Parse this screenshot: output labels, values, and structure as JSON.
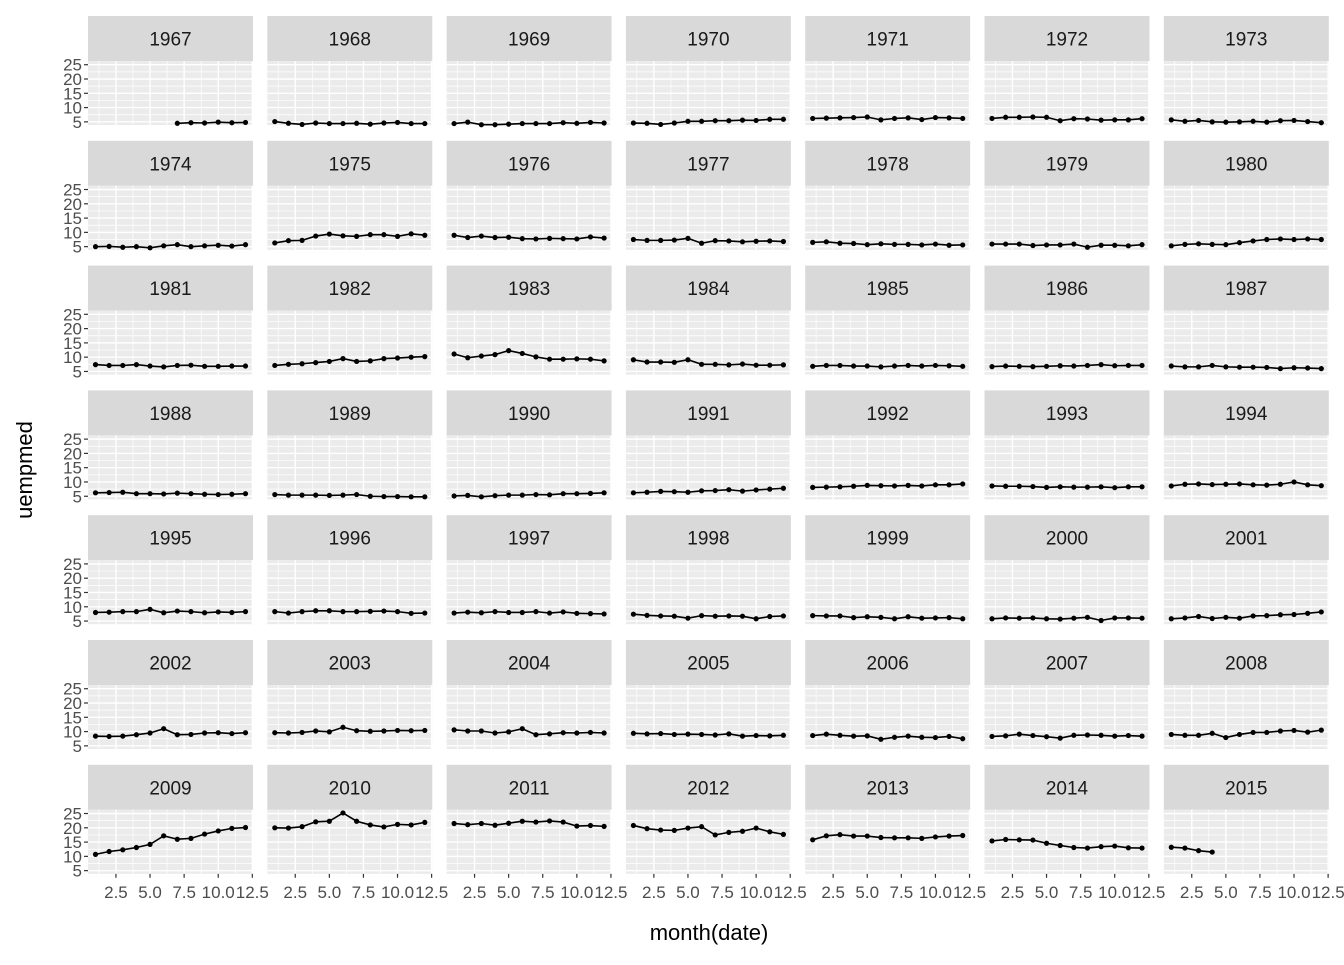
{
  "chart_data": {
    "type": "line",
    "facet_by": "year",
    "xlabel": "month(date)",
    "ylabel": "uempmed",
    "xlim": [
      0.45,
      12.55
    ],
    "ylim": [
      3.9,
      26.3
    ],
    "x_ticks": [
      "2.5",
      "5.0",
      "7.5",
      "10.0",
      "12.5"
    ],
    "y_ticks": [
      "5",
      "10",
      "15",
      "20",
      "25"
    ],
    "grid": true,
    "points": true,
    "colors": {
      "line": "#000000",
      "panel": "#EBEBEB",
      "strip": "#D9D9D9",
      "grid": "#FFFFFF",
      "text": "#4D4D4D"
    },
    "facets": [
      {
        "label": "1967",
        "start_month": 7,
        "values": [
          4.5,
          4.7,
          4.6,
          4.9,
          4.7,
          4.8
        ]
      },
      {
        "label": "1968",
        "start_month": 1,
        "values": [
          5.1,
          4.5,
          4.1,
          4.6,
          4.4,
          4.4,
          4.5,
          4.2,
          4.6,
          4.8,
          4.4,
          4.4
        ]
      },
      {
        "label": "1969",
        "start_month": 1,
        "values": [
          4.4,
          4.9,
          4.0,
          4.0,
          4.2,
          4.4,
          4.4,
          4.4,
          4.7,
          4.5,
          4.8,
          4.6
        ]
      },
      {
        "label": "1970",
        "start_month": 1,
        "values": [
          4.6,
          4.5,
          4.1,
          4.6,
          5.2,
          5.2,
          5.4,
          5.4,
          5.6,
          5.5,
          5.9,
          5.9
        ]
      },
      {
        "label": "1971",
        "start_month": 1,
        "values": [
          6.2,
          6.3,
          6.4,
          6.5,
          6.7,
          5.7,
          6.2,
          6.4,
          5.8,
          6.5,
          6.4,
          6.2
        ]
      },
      {
        "label": "1972",
        "start_month": 1,
        "values": [
          6.2,
          6.6,
          6.6,
          6.7,
          6.6,
          5.4,
          6.1,
          6.0,
          5.6,
          5.7,
          5.7,
          6.1
        ]
      },
      {
        "label": "1973",
        "start_month": 1,
        "values": [
          5.7,
          5.2,
          5.5,
          5.0,
          4.9,
          5.0,
          5.2,
          4.9,
          5.4,
          5.5,
          5.1,
          4.7
        ]
      },
      {
        "label": "1974",
        "start_month": 1,
        "values": [
          5.0,
          5.1,
          4.8,
          5.0,
          4.6,
          5.3,
          5.7,
          5.0,
          5.3,
          5.5,
          5.2,
          5.7
        ]
      },
      {
        "label": "1975",
        "start_month": 1,
        "values": [
          6.3,
          7.1,
          7.2,
          8.7,
          9.4,
          8.8,
          8.6,
          9.2,
          9.2,
          8.6,
          9.5,
          9.0
        ]
      },
      {
        "label": "1976",
        "start_month": 1,
        "values": [
          9.0,
          8.2,
          8.7,
          8.2,
          8.3,
          7.8,
          7.7,
          7.9,
          7.8,
          7.7,
          8.4,
          8.0
        ]
      },
      {
        "label": "1977",
        "start_month": 1,
        "values": [
          7.5,
          7.2,
          7.2,
          7.3,
          7.9,
          6.2,
          7.1,
          7.0,
          6.7,
          6.9,
          7.0,
          6.8
        ]
      },
      {
        "label": "1978",
        "start_month": 1,
        "values": [
          6.5,
          6.7,
          6.2,
          6.1,
          5.7,
          6.0,
          5.8,
          5.8,
          5.6,
          5.9,
          5.5,
          5.6
        ]
      },
      {
        "label": "1979",
        "start_month": 1,
        "values": [
          5.9,
          5.9,
          5.9,
          5.4,
          5.6,
          5.6,
          5.9,
          4.8,
          5.5,
          5.5,
          5.3,
          5.7
        ]
      },
      {
        "label": "1980",
        "start_month": 1,
        "values": [
          5.3,
          5.8,
          6.0,
          5.8,
          5.7,
          6.4,
          7.0,
          7.5,
          7.7,
          7.5,
          7.7,
          7.5
        ]
      },
      {
        "label": "1981",
        "start_month": 1,
        "values": [
          7.4,
          7.1,
          7.1,
          7.4,
          6.9,
          6.6,
          7.1,
          7.2,
          6.8,
          6.8,
          6.9,
          6.9
        ]
      },
      {
        "label": "1982",
        "start_month": 1,
        "values": [
          7.1,
          7.5,
          7.7,
          8.1,
          8.5,
          9.5,
          8.5,
          8.7,
          9.5,
          9.7,
          10.0,
          10.2
        ]
      },
      {
        "label": "1983",
        "start_month": 1,
        "values": [
          11.1,
          9.8,
          10.4,
          10.9,
          12.3,
          11.3,
          10.1,
          9.3,
          9.3,
          9.4,
          9.3,
          8.7
        ]
      },
      {
        "label": "1984",
        "start_month": 1,
        "values": [
          9.1,
          8.3,
          8.3,
          8.2,
          9.1,
          7.5,
          7.5,
          7.3,
          7.6,
          7.2,
          7.2,
          7.3
        ]
      },
      {
        "label": "1985",
        "start_month": 1,
        "values": [
          6.8,
          7.1,
          7.1,
          6.9,
          6.9,
          6.6,
          6.9,
          7.1,
          6.9,
          7.1,
          7.0,
          6.8
        ]
      },
      {
        "label": "1986",
        "start_month": 1,
        "values": [
          6.7,
          6.9,
          6.8,
          6.7,
          6.8,
          7.0,
          6.9,
          7.1,
          7.4,
          7.0,
          7.1,
          7.1
        ]
      },
      {
        "label": "1987",
        "start_month": 1,
        "values": [
          6.9,
          6.6,
          6.6,
          7.1,
          6.6,
          6.5,
          6.5,
          6.4,
          6.0,
          6.3,
          6.2,
          6.0
        ]
      },
      {
        "label": "1988",
        "start_month": 1,
        "values": [
          6.2,
          6.3,
          6.4,
          5.9,
          5.9,
          5.8,
          6.1,
          5.9,
          5.7,
          5.6,
          5.7,
          5.9
        ]
      },
      {
        "label": "1989",
        "start_month": 1,
        "values": [
          5.6,
          5.4,
          5.4,
          5.4,
          5.3,
          5.4,
          5.6,
          5.0,
          4.9,
          4.9,
          4.8,
          4.8
        ]
      },
      {
        "label": "1990",
        "start_month": 1,
        "values": [
          5.1,
          5.3,
          4.8,
          5.2,
          5.4,
          5.4,
          5.6,
          5.5,
          5.9,
          5.9,
          6.0,
          6.2
        ]
      },
      {
        "label": "1991",
        "start_month": 1,
        "values": [
          6.2,
          6.4,
          6.7,
          6.6,
          6.4,
          6.9,
          7.0,
          7.3,
          6.8,
          7.2,
          7.5,
          7.8
        ]
      },
      {
        "label": "1992",
        "start_month": 1,
        "values": [
          8.1,
          8.2,
          8.3,
          8.5,
          8.8,
          8.7,
          8.6,
          8.8,
          8.6,
          9.0,
          9.0,
          9.3
        ]
      },
      {
        "label": "1993",
        "start_month": 1,
        "values": [
          8.6,
          8.5,
          8.5,
          8.4,
          8.1,
          8.3,
          8.2,
          8.2,
          8.3,
          8.0,
          8.3,
          8.3
        ]
      },
      {
        "label": "1994",
        "start_month": 1,
        "values": [
          8.6,
          9.2,
          9.3,
          9.1,
          9.2,
          9.3,
          9.0,
          8.9,
          9.2,
          10.0,
          9.0,
          8.7
        ]
      },
      {
        "label": "1995",
        "start_month": 1,
        "values": [
          8.0,
          8.1,
          8.3,
          8.3,
          9.1,
          7.9,
          8.5,
          8.3,
          7.9,
          8.2,
          8.0,
          8.3
        ]
      },
      {
        "label": "1996",
        "start_month": 1,
        "values": [
          8.3,
          7.8,
          8.3,
          8.6,
          8.6,
          8.3,
          8.3,
          8.4,
          8.5,
          8.3,
          7.7,
          7.8
        ]
      },
      {
        "label": "1997",
        "start_month": 1,
        "values": [
          7.8,
          8.1,
          7.9,
          8.3,
          8.0,
          8.0,
          8.3,
          7.8,
          8.2,
          7.7,
          7.6,
          7.5
        ]
      },
      {
        "label": "1998",
        "start_month": 1,
        "values": [
          7.4,
          7.0,
          6.8,
          6.7,
          6.0,
          6.9,
          6.7,
          6.8,
          6.7,
          5.8,
          6.6,
          6.8
        ]
      },
      {
        "label": "1999",
        "start_month": 1,
        "values": [
          6.9,
          6.8,
          6.8,
          6.2,
          6.5,
          6.3,
          5.8,
          6.5,
          6.0,
          6.1,
          6.2,
          5.8
        ]
      },
      {
        "label": "2000",
        "start_month": 1,
        "values": [
          5.8,
          6.1,
          6.0,
          6.1,
          5.8,
          5.7,
          6.0,
          6.3,
          5.2,
          6.1,
          6.1,
          6.0
        ]
      },
      {
        "label": "2001",
        "start_month": 1,
        "values": [
          5.8,
          6.1,
          6.6,
          5.9,
          6.3,
          6.0,
          6.8,
          6.9,
          7.2,
          7.3,
          7.7,
          8.2
        ]
      },
      {
        "label": "2002",
        "start_month": 1,
        "values": [
          8.4,
          8.3,
          8.4,
          8.9,
          9.5,
          11.0,
          8.9,
          9.0,
          9.5,
          9.6,
          9.3,
          9.6
        ]
      },
      {
        "label": "2003",
        "start_month": 1,
        "values": [
          9.6,
          9.5,
          9.7,
          10.2,
          9.9,
          11.5,
          10.3,
          10.1,
          10.2,
          10.4,
          10.3,
          10.4
        ]
      },
      {
        "label": "2004",
        "start_month": 1,
        "values": [
          10.6,
          10.2,
          10.2,
          9.5,
          9.9,
          11.0,
          8.9,
          9.2,
          9.6,
          9.5,
          9.7,
          9.5
        ]
      },
      {
        "label": "2005",
        "start_month": 1,
        "values": [
          9.4,
          9.2,
          9.3,
          9.0,
          9.1,
          9.0,
          8.8,
          9.2,
          8.4,
          8.6,
          8.5,
          8.7
        ]
      },
      {
        "label": "2006",
        "start_month": 1,
        "values": [
          8.6,
          9.1,
          8.7,
          8.4,
          8.5,
          7.3,
          8.0,
          8.4,
          8.0,
          7.9,
          8.3,
          7.5
        ]
      },
      {
        "label": "2007",
        "start_month": 1,
        "values": [
          8.3,
          8.5,
          9.1,
          8.6,
          8.2,
          7.7,
          8.7,
          8.8,
          8.7,
          8.4,
          8.6,
          8.4
        ]
      },
      {
        "label": "2008",
        "start_month": 1,
        "values": [
          9.0,
          8.7,
          8.7,
          9.4,
          7.9,
          9.0,
          9.7,
          9.7,
          10.2,
          10.4,
          9.8,
          10.5
        ]
      },
      {
        "label": "2009",
        "start_month": 1,
        "values": [
          10.7,
          11.7,
          12.3,
          13.1,
          14.2,
          17.2,
          16.0,
          16.3,
          17.8,
          18.9,
          19.8,
          20.1
        ]
      },
      {
        "label": "2010",
        "start_month": 1,
        "values": [
          20.0,
          19.9,
          20.4,
          22.1,
          22.3,
          25.2,
          22.3,
          21.0,
          20.3,
          21.2,
          21.0,
          21.9
        ]
      },
      {
        "label": "2011",
        "start_month": 1,
        "values": [
          21.5,
          21.1,
          21.5,
          20.9,
          21.6,
          22.3,
          22.0,
          22.4,
          22.0,
          20.6,
          20.8,
          20.5
        ]
      },
      {
        "label": "2012",
        "start_month": 1,
        "values": [
          20.8,
          19.7,
          19.2,
          19.1,
          19.9,
          20.4,
          17.5,
          18.4,
          18.8,
          19.9,
          18.6,
          17.7
        ]
      },
      {
        "label": "2013",
        "start_month": 1,
        "values": [
          15.8,
          17.2,
          17.6,
          17.1,
          17.1,
          16.6,
          16.5,
          16.5,
          16.3,
          16.8,
          17.1,
          17.3
        ]
      },
      {
        "label": "2014",
        "start_month": 1,
        "values": [
          15.4,
          15.9,
          15.8,
          15.7,
          14.6,
          13.8,
          13.1,
          12.9,
          13.4,
          13.6,
          13.0,
          12.9
        ]
      },
      {
        "label": "2015",
        "start_month": 1,
        "values": [
          13.2,
          12.9,
          12.0,
          11.5
        ]
      }
    ]
  }
}
